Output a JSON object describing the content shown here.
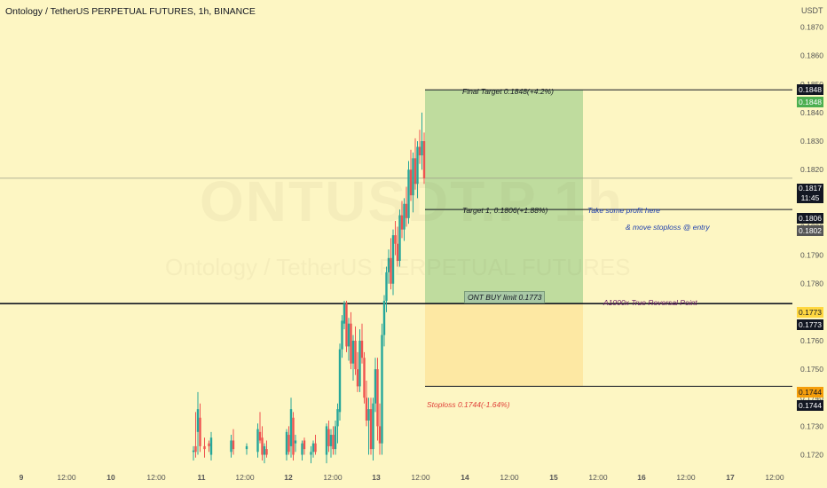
{
  "header": {
    "title": "Ontology / TetherUS PERPETUAL FUTURES, 1h, BINANCE",
    "unit": "USDT"
  },
  "watermark": {
    "symbol": "ONTUSDT.P 1h",
    "name": "Ontology / TetherUS PERPETUAL FUTURES"
  },
  "annotations": {
    "final_target": "Final Target 0.1848(+4.2%)",
    "target1": "Target 1, 0.1806(+1.88%)",
    "take_profit": "Take some profit here",
    "move_stop": "& move stoploss @ entry",
    "buy_limit": "ONT BUY limit 0.1773",
    "reversal": "A1000x True Reversal Point",
    "stoploss": "Stoploss 0.1744(-1.64%)"
  },
  "price_tags": {
    "final_black": "0.1848",
    "final_green": "0.1848",
    "current_price": "0.1817",
    "countdown": "11:45",
    "t1_black": "0.1806",
    "t1_grey": "0.1802",
    "entry_yellow": "0.1773",
    "entry_black": "0.1773",
    "stop_orange": "0.1744",
    "stop_black": "0.1744"
  },
  "colors": {
    "background": "#fdf6c3",
    "target_zone": "#bfdc9e",
    "stop_zone": "#fde8a3",
    "up": "#26a69a",
    "down": "#ef5350",
    "tag_green": "#4caf50",
    "tag_orange": "#f59e0b",
    "tag_yellow": "#ffd740"
  },
  "chart_data": {
    "type": "candlestick",
    "symbol": "ONTUSDT.P",
    "interval": "1h",
    "yaxis_ticks": [
      0.172,
      0.173,
      0.174,
      0.175,
      0.176,
      0.177,
      0.178,
      0.179,
      0.18,
      0.181,
      0.182,
      0.183,
      0.184,
      0.185,
      0.186,
      0.187
    ],
    "ylim": [
      0.17155,
      0.18795
    ],
    "xaxis_ticks": [
      "9",
      "12:00",
      "10",
      "12:00",
      "11",
      "12:00",
      "12",
      "12:00",
      "13",
      "12:00",
      "14",
      "12:00",
      "15",
      "12:00",
      "16",
      "12:00",
      "17",
      "12:00"
    ],
    "candles": [
      {
        "t": 96,
        "o": 0.1721,
        "h": 0.1723,
        "l": 0.1718,
        "c": 0.17215
      },
      {
        "t": 97,
        "o": 0.1723,
        "h": 0.1735,
        "l": 0.1719,
        "c": 0.1721
      },
      {
        "t": 98,
        "o": 0.1728,
        "h": 0.1742,
        "l": 0.172,
        "c": 0.1736
      },
      {
        "t": 99,
        "o": 0.1733,
        "h": 0.1738,
        "l": 0.1721,
        "c": 0.1723
      },
      {
        "t": 101,
        "o": 0.1723,
        "h": 0.1726,
        "l": 0.1719,
        "c": 0.1722
      },
      {
        "t": 103,
        "o": 0.1724,
        "h": 0.1725,
        "l": 0.1721,
        "c": 0.1723
      },
      {
        "t": 104,
        "o": 0.172,
        "h": 0.1728,
        "l": 0.1718,
        "c": 0.1726
      },
      {
        "t": 113,
        "o": 0.1721,
        "h": 0.1727,
        "l": 0.1719,
        "c": 0.1725
      },
      {
        "t": 114,
        "o": 0.1725,
        "h": 0.1729,
        "l": 0.172,
        "c": 0.1722
      },
      {
        "t": 120,
        "o": 0.1722,
        "h": 0.1724,
        "l": 0.172,
        "c": 0.1723
      },
      {
        "t": 125,
        "o": 0.1721,
        "h": 0.1731,
        "l": 0.1719,
        "c": 0.1729
      },
      {
        "t": 126,
        "o": 0.1728,
        "h": 0.1735,
        "l": 0.1724,
        "c": 0.1725
      },
      {
        "t": 127,
        "o": 0.1726,
        "h": 0.173,
        "l": 0.1718,
        "c": 0.172
      },
      {
        "t": 128,
        "o": 0.172,
        "h": 0.1724,
        "l": 0.1717,
        "c": 0.1723
      },
      {
        "t": 129,
        "o": 0.1722,
        "h": 0.1725,
        "l": 0.1719,
        "c": 0.172
      },
      {
        "t": 138,
        "o": 0.172,
        "h": 0.1729,
        "l": 0.1718,
        "c": 0.1728
      },
      {
        "t": 139,
        "o": 0.1727,
        "h": 0.173,
        "l": 0.172,
        "c": 0.1721
      },
      {
        "t": 140,
        "o": 0.1723,
        "h": 0.174,
        "l": 0.1719,
        "c": 0.1736
      },
      {
        "t": 141,
        "o": 0.1733,
        "h": 0.1735,
        "l": 0.1718,
        "c": 0.172
      },
      {
        "t": 142,
        "o": 0.1724,
        "h": 0.1727,
        "l": 0.1721,
        "c": 0.1725
      },
      {
        "t": 145,
        "o": 0.172,
        "h": 0.1725,
        "l": 0.1718,
        "c": 0.1724
      },
      {
        "t": 146,
        "o": 0.1725,
        "h": 0.1726,
        "l": 0.172,
        "c": 0.1722
      },
      {
        "t": 149,
        "o": 0.172,
        "h": 0.1723,
        "l": 0.1717,
        "c": 0.1721
      },
      {
        "t": 150,
        "o": 0.1721,
        "h": 0.1725,
        "l": 0.1719,
        "c": 0.1724
      },
      {
        "t": 151,
        "o": 0.1724,
        "h": 0.1727,
        "l": 0.172,
        "c": 0.1721
      },
      {
        "t": 156,
        "o": 0.172,
        "h": 0.1731,
        "l": 0.1717,
        "c": 0.173
      },
      {
        "t": 157,
        "o": 0.1729,
        "h": 0.1732,
        "l": 0.1721,
        "c": 0.1723
      },
      {
        "t": 158,
        "o": 0.1723,
        "h": 0.1729,
        "l": 0.1719,
        "c": 0.1727
      },
      {
        "t": 159,
        "o": 0.1727,
        "h": 0.173,
        "l": 0.172,
        "c": 0.1722
      },
      {
        "t": 160,
        "o": 0.1722,
        "h": 0.1732,
        "l": 0.172,
        "c": 0.173
      },
      {
        "t": 161,
        "o": 0.173,
        "h": 0.1738,
        "l": 0.1724,
        "c": 0.1736
      },
      {
        "t": 162,
        "o": 0.1735,
        "h": 0.1759,
        "l": 0.1732,
        "c": 0.1757
      },
      {
        "t": 163,
        "o": 0.1757,
        "h": 0.1769,
        "l": 0.1754,
        "c": 0.1767
      },
      {
        "t": 164,
        "o": 0.1766,
        "h": 0.1774,
        "l": 0.1764,
        "c": 0.1773
      },
      {
        "t": 165,
        "o": 0.1773,
        "h": 0.1774,
        "l": 0.1756,
        "c": 0.1758
      },
      {
        "t": 166,
        "o": 0.1758,
        "h": 0.1768,
        "l": 0.1753,
        "c": 0.1766
      },
      {
        "t": 167,
        "o": 0.1766,
        "h": 0.177,
        "l": 0.175,
        "c": 0.1752
      },
      {
        "t": 168,
        "o": 0.1752,
        "h": 0.1762,
        "l": 0.1746,
        "c": 0.176
      },
      {
        "t": 169,
        "o": 0.176,
        "h": 0.1765,
        "l": 0.1748,
        "c": 0.175
      },
      {
        "t": 170,
        "o": 0.175,
        "h": 0.1756,
        "l": 0.1742,
        "c": 0.1744
      },
      {
        "t": 171,
        "o": 0.1744,
        "h": 0.1764,
        "l": 0.1742,
        "c": 0.176
      },
      {
        "t": 172,
        "o": 0.176,
        "h": 0.1766,
        "l": 0.1752,
        "c": 0.1754
      },
      {
        "t": 173,
        "o": 0.1754,
        "h": 0.1756,
        "l": 0.1738,
        "c": 0.174
      },
      {
        "t": 174,
        "o": 0.174,
        "h": 0.1746,
        "l": 0.173,
        "c": 0.1732
      },
      {
        "t": 175,
        "o": 0.1732,
        "h": 0.174,
        "l": 0.172,
        "c": 0.1736
      },
      {
        "t": 176,
        "o": 0.1736,
        "h": 0.174,
        "l": 0.172,
        "c": 0.1722
      },
      {
        "t": 177,
        "o": 0.1722,
        "h": 0.174,
        "l": 0.1718,
        "c": 0.1738
      },
      {
        "t": 178,
        "o": 0.1738,
        "h": 0.1754,
        "l": 0.1735,
        "c": 0.175
      },
      {
        "t": 179,
        "o": 0.175,
        "h": 0.1754,
        "l": 0.1725,
        "c": 0.173
      },
      {
        "t": 180,
        "o": 0.173,
        "h": 0.1738,
        "l": 0.172,
        "c": 0.1724
      },
      {
        "t": 181,
        "o": 0.1724,
        "h": 0.1766,
        "l": 0.172,
        "c": 0.1762
      },
      {
        "t": 182,
        "o": 0.1762,
        "h": 0.1776,
        "l": 0.1758,
        "c": 0.1774
      },
      {
        "t": 183,
        "o": 0.1774,
        "h": 0.1786,
        "l": 0.177,
        "c": 0.1784
      },
      {
        "t": 184,
        "o": 0.1784,
        "h": 0.1792,
        "l": 0.178,
        "c": 0.1789
      },
      {
        "t": 185,
        "o": 0.1789,
        "h": 0.1796,
        "l": 0.1778,
        "c": 0.178
      },
      {
        "t": 186,
        "o": 0.178,
        "h": 0.1799,
        "l": 0.1776,
        "c": 0.1797
      },
      {
        "t": 187,
        "o": 0.1797,
        "h": 0.1802,
        "l": 0.179,
        "c": 0.1794
      },
      {
        "t": 188,
        "o": 0.1794,
        "h": 0.18,
        "l": 0.1786,
        "c": 0.1788
      },
      {
        "t": 189,
        "o": 0.1788,
        "h": 0.1806,
        "l": 0.1786,
        "c": 0.1804
      },
      {
        "t": 190,
        "o": 0.1804,
        "h": 0.1809,
        "l": 0.1796,
        "c": 0.1799
      },
      {
        "t": 191,
        "o": 0.1799,
        "h": 0.181,
        "l": 0.1795,
        "c": 0.1808
      },
      {
        "t": 192,
        "o": 0.1808,
        "h": 0.1814,
        "l": 0.18,
        "c": 0.1803
      },
      {
        "t": 193,
        "o": 0.1803,
        "h": 0.1823,
        "l": 0.1801,
        "c": 0.182
      },
      {
        "t": 194,
        "o": 0.182,
        "h": 0.1827,
        "l": 0.1809,
        "c": 0.1811
      },
      {
        "t": 195,
        "o": 0.1811,
        "h": 0.1826,
        "l": 0.1805,
        "c": 0.1824
      },
      {
        "t": 196,
        "o": 0.1824,
        "h": 0.1831,
        "l": 0.1813,
        "c": 0.1815
      },
      {
        "t": 197,
        "o": 0.1815,
        "h": 0.183,
        "l": 0.181,
        "c": 0.1828
      },
      {
        "t": 198,
        "o": 0.1828,
        "h": 0.1834,
        "l": 0.1822,
        "c": 0.1825
      },
      {
        "t": 199,
        "o": 0.1825,
        "h": 0.184,
        "l": 0.182,
        "c": 0.183
      },
      {
        "t": 200,
        "o": 0.183,
        "h": 0.1833,
        "l": 0.1815,
        "c": 0.1817
      }
    ],
    "levels": {
      "final_target": 0.1848,
      "target1": 0.1806,
      "entry": 0.1773,
      "stoploss": 0.1744,
      "current": 0.1817
    },
    "position": {
      "target_zone": [
        0.1773,
        0.1848
      ],
      "stop_zone": [
        0.1744,
        0.1773
      ]
    },
    "grid": false,
    "legend": "none"
  }
}
